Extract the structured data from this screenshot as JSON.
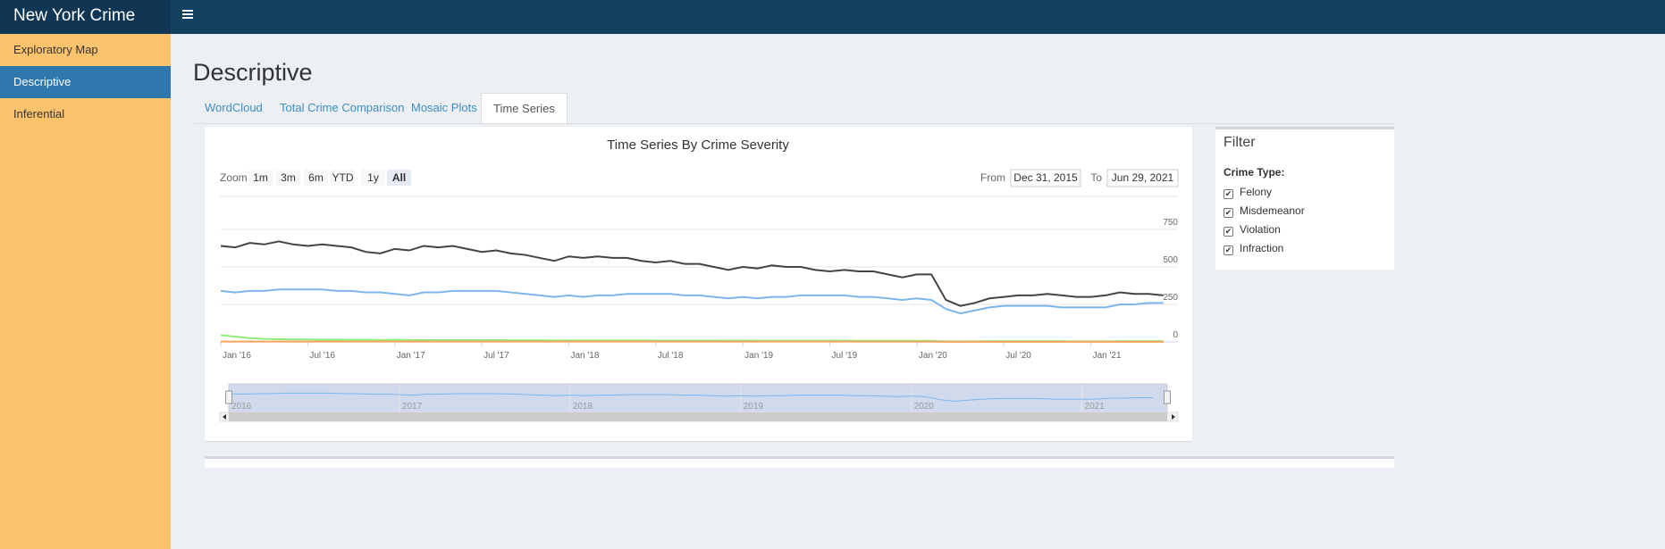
{
  "header": {
    "title": "New York Crime Rate"
  },
  "sidebar": {
    "items": [
      "Exploratory Map",
      "Descriptive",
      "Inferential"
    ],
    "active": 1
  },
  "page_title": "Descriptive",
  "tabs": {
    "items": [
      "WordCloud",
      "Total Crime Comparison",
      "Mosaic Plots",
      "Time Series"
    ],
    "active": 3
  },
  "filter": {
    "title": "Filter",
    "label": "Crime Type:"
  },
  "chart_data": {
    "type": "line",
    "title": "Time Series By Crime Severity",
    "range_selector": {
      "label": "Zoom",
      "buttons": [
        "1m",
        "3m",
        "6m",
        "YTD",
        "1y",
        "All"
      ],
      "selected": 5,
      "from_label": "From",
      "from": "Dec 31, 2015",
      "to_label": "To",
      "to": "Jun 29, 2021"
    },
    "x": [
      "2016-01",
      "2016-02",
      "2016-03",
      "2016-04",
      "2016-05",
      "2016-06",
      "2016-07",
      "2016-08",
      "2016-09",
      "2016-10",
      "2016-11",
      "2016-12",
      "2017-01",
      "2017-02",
      "2017-03",
      "2017-04",
      "2017-05",
      "2017-06",
      "2017-07",
      "2017-08",
      "2017-09",
      "2017-10",
      "2017-11",
      "2017-12",
      "2018-01",
      "2018-02",
      "2018-03",
      "2018-04",
      "2018-05",
      "2018-06",
      "2018-07",
      "2018-08",
      "2018-09",
      "2018-10",
      "2018-11",
      "2018-12",
      "2019-01",
      "2019-02",
      "2019-03",
      "2019-04",
      "2019-05",
      "2019-06",
      "2019-07",
      "2019-08",
      "2019-09",
      "2019-10",
      "2019-11",
      "2019-12",
      "2020-01",
      "2020-02",
      "2020-03",
      "2020-04",
      "2020-05",
      "2020-06",
      "2020-07",
      "2020-08",
      "2020-09",
      "2020-10",
      "2020-11",
      "2020-12",
      "2021-01",
      "2021-02",
      "2021-03",
      "2021-04",
      "2021-05",
      "2021-06"
    ],
    "xlim": [
      "2016-01",
      "2021-07"
    ],
    "xticks": [
      {
        "value": "2016-01",
        "label": "Jan '16"
      },
      {
        "value": "2016-07",
        "label": "Jul '16"
      },
      {
        "value": "2017-01",
        "label": "Jan '17"
      },
      {
        "value": "2017-07",
        "label": "Jul '17"
      },
      {
        "value": "2018-01",
        "label": "Jan '18"
      },
      {
        "value": "2018-07",
        "label": "Jul '18"
      },
      {
        "value": "2019-01",
        "label": "Jan '19"
      },
      {
        "value": "2019-07",
        "label": "Jul '19"
      },
      {
        "value": "2020-01",
        "label": "Jan '20"
      },
      {
        "value": "2020-07",
        "label": "Jul '20"
      },
      {
        "value": "2021-01",
        "label": "Jan '21"
      }
    ],
    "navigator_xticks": [
      {
        "value": "2016-01",
        "label": "2016"
      },
      {
        "value": "2017-01",
        "label": "2017"
      },
      {
        "value": "2018-01",
        "label": "2018"
      },
      {
        "value": "2019-01",
        "label": "2019"
      },
      {
        "value": "2020-01",
        "label": "2020"
      },
      {
        "value": "2021-01",
        "label": "2021"
      }
    ],
    "ylim": [
      0,
      1000
    ],
    "yticks": [
      0,
      250,
      500,
      750
    ],
    "grid": true,
    "series": [
      {
        "name": "Felony",
        "color": "#7cb5ec",
        "values": [
          340,
          330,
          340,
          340,
          350,
          350,
          350,
          350,
          340,
          340,
          330,
          330,
          320,
          310,
          330,
          330,
          340,
          340,
          340,
          340,
          330,
          320,
          310,
          300,
          310,
          300,
          310,
          310,
          320,
          320,
          320,
          320,
          310,
          310,
          300,
          290,
          300,
          290,
          300,
          300,
          310,
          310,
          310,
          310,
          300,
          300,
          290,
          280,
          290,
          280,
          220,
          190,
          210,
          230,
          240,
          240,
          240,
          240,
          230,
          230,
          230,
          230,
          250,
          250,
          260,
          260
        ]
      },
      {
        "name": "Misdemeanor",
        "color": "#434348",
        "values": [
          640,
          630,
          660,
          650,
          670,
          650,
          640,
          650,
          640,
          630,
          600,
          590,
          620,
          610,
          640,
          630,
          640,
          620,
          600,
          610,
          590,
          580,
          560,
          540,
          570,
          560,
          570,
          560,
          560,
          540,
          530,
          540,
          520,
          520,
          500,
          480,
          500,
          490,
          510,
          500,
          500,
          480,
          470,
          480,
          470,
          470,
          450,
          430,
          450,
          450,
          280,
          240,
          260,
          290,
          300,
          310,
          310,
          320,
          310,
          300,
          300,
          310,
          330,
          320,
          320,
          310
        ]
      },
      {
        "name": "Violation",
        "color": "#90ed7d",
        "values": [
          45,
          35,
          25,
          20,
          18,
          16,
          16,
          15,
          15,
          14,
          14,
          13,
          14,
          13,
          13,
          12,
          12,
          12,
          12,
          12,
          11,
          11,
          11,
          10,
          10,
          10,
          10,
          10,
          10,
          10,
          9,
          9,
          9,
          9,
          9,
          8,
          9,
          8,
          8,
          8,
          8,
          8,
          8,
          8,
          7,
          7,
          7,
          7,
          7,
          7,
          4,
          3,
          4,
          5,
          5,
          5,
          5,
          5,
          5,
          4,
          4,
          4,
          5,
          5,
          5,
          5
        ]
      },
      {
        "name": "Infraction",
        "color": "#f7a35c",
        "values": [
          2,
          2,
          2,
          2,
          2,
          2,
          2,
          2,
          2,
          2,
          2,
          2,
          2,
          2,
          2,
          2,
          2,
          2,
          2,
          2,
          2,
          2,
          2,
          2,
          2,
          2,
          2,
          2,
          2,
          2,
          2,
          2,
          2,
          2,
          2,
          2,
          2,
          2,
          2,
          2,
          2,
          2,
          2,
          2,
          2,
          2,
          2,
          2,
          2,
          2,
          1,
          1,
          1,
          1,
          1,
          1,
          1,
          1,
          1,
          1,
          1,
          1,
          1,
          1,
          1,
          1
        ]
      }
    ]
  }
}
